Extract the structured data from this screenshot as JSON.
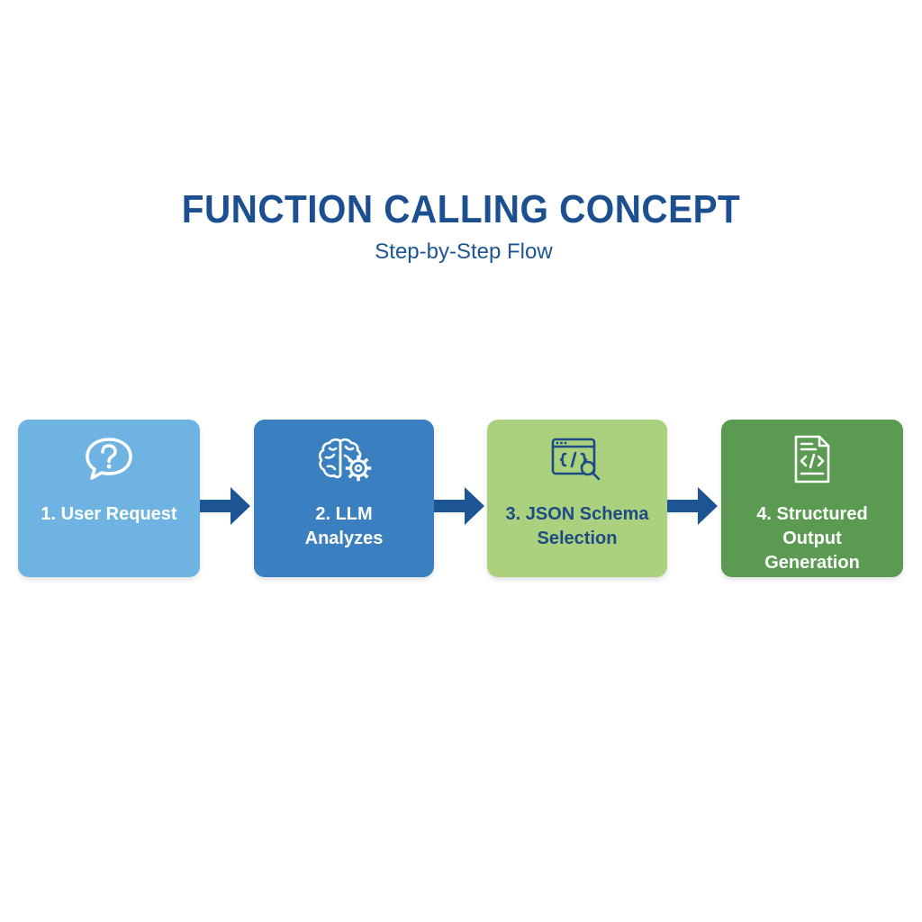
{
  "diagram": {
    "title": "FUNCTION CALLING CONCEPT",
    "subtitle": "Step-by-Step Flow",
    "steps": [
      {
        "label": "1. User Request",
        "icon": "question-bubble-icon",
        "color": "#6fb3e3"
      },
      {
        "label": "2. LLM\nAnalyzes",
        "icon": "brain-gear-icon",
        "color": "#3a80c0"
      },
      {
        "label": "3. JSON Schema\nSelection",
        "icon": "code-window-search-icon",
        "color": "#acd17e"
      },
      {
        "label": "4. Structured Output\nGeneration",
        "icon": "code-document-icon",
        "color": "#5a9b51"
      }
    ],
    "arrow_color": "#1d5494"
  }
}
